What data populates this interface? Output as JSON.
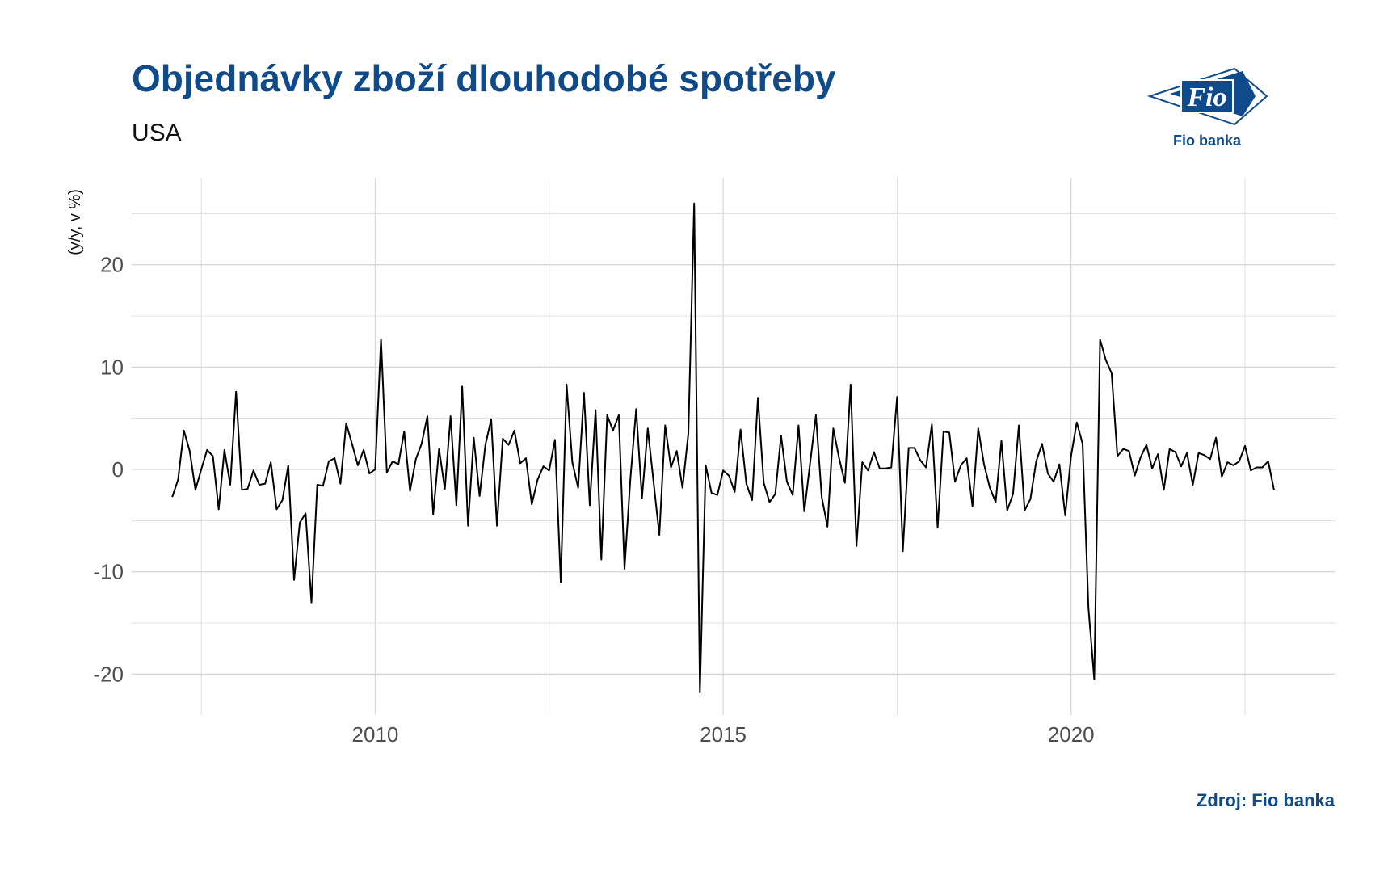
{
  "header": {
    "title": "Objednávky zboží dlouhodobé spotřeby",
    "subtitle": "USA"
  },
  "logo": {
    "mark_text": "Fio",
    "caption": "Fio banka"
  },
  "footer": {
    "source": "Zdroj: Fio banka"
  },
  "colors": {
    "brand": "#0f4a8a",
    "line": "#000000",
    "grid": "#d9d9d9"
  },
  "chart_data": {
    "type": "line",
    "title": "Objednávky zboží dlouhodobé spotřeby",
    "subtitle": "USA",
    "xlabel": "",
    "ylabel": "(y/y, v %)",
    "xlim": [
      2006.5,
      2023.8
    ],
    "ylim": [
      -24,
      28.5
    ],
    "x_ticks": [
      2010,
      2015,
      2020
    ],
    "y_ticks": [
      -20,
      -10,
      0,
      10,
      20
    ],
    "grid": true,
    "legend": "none",
    "x_start": 2007.0833,
    "x_step": 0.08333,
    "values": [
      -2.7,
      -1.0,
      3.8,
      1.8,
      -2.0,
      0.0,
      1.9,
      1.3,
      -3.9,
      1.9,
      -1.5,
      7.6,
      -2.0,
      -1.9,
      -0.1,
      -1.5,
      -1.4,
      0.7,
      -3.9,
      -3.0,
      0.4,
      -10.8,
      -5.2,
      -4.3,
      -13.0,
      -1.5,
      -1.6,
      0.8,
      1.1,
      -1.4,
      4.5,
      2.5,
      0.4,
      1.9,
      -0.4,
      0.0,
      12.7,
      -0.3,
      0.8,
      0.5,
      3.7,
      -2.1,
      1.0,
      2.5,
      5.2,
      -4.4,
      2.0,
      -1.9,
      5.2,
      -3.5,
      8.1,
      -5.5,
      3.1,
      -2.6,
      2.4,
      4.9,
      -5.5,
      3.0,
      2.4,
      3.8,
      0.6,
      1.1,
      -3.4,
      -1.0,
      0.3,
      -0.1,
      2.9,
      -11.0,
      8.3,
      0.7,
      -1.8,
      7.5,
      -3.5,
      5.8,
      -8.8,
      5.3,
      3.8,
      5.3,
      -9.7,
      -1.0,
      5.9,
      -2.8,
      4.0,
      -1.2,
      -6.4,
      4.3,
      0.2,
      1.8,
      -1.8,
      3.5,
      26.0,
      -21.8,
      0.4,
      -2.3,
      -2.5,
      -0.1,
      -0.6,
      -2.2,
      3.9,
      -1.4,
      -3.0,
      7.0,
      -1.3,
      -3.2,
      -2.4,
      3.3,
      -1.2,
      -2.5,
      4.3,
      -4.1,
      0.6,
      5.3,
      -2.7,
      -5.6,
      4.0,
      1.1,
      -1.3,
      8.3,
      -7.5,
      0.7,
      -0.1,
      1.7,
      0.1,
      0.1,
      0.2,
      7.1,
      -8.0,
      2.1,
      2.1,
      0.9,
      0.2,
      4.4,
      -5.7,
      3.7,
      3.6,
      -1.2,
      0.4,
      1.1,
      -3.6,
      4.0,
      0.5,
      -1.8,
      -3.2,
      2.8,
      -4.0,
      -2.4,
      4.3,
      -4.0,
      -2.9,
      0.8,
      2.5,
      -0.4,
      -1.2,
      0.5,
      -4.5,
      1.3,
      4.6,
      2.5,
      -13.5,
      -20.5,
      12.7,
      10.7,
      9.4,
      1.3,
      2.0,
      1.8,
      -0.6,
      1.2,
      2.4,
      0.1,
      1.5,
      -2.0,
      2.0,
      1.7,
      0.3,
      1.6,
      -1.5,
      1.6,
      1.4,
      1.0,
      3.1,
      -0.7,
      0.7,
      0.4,
      0.8,
      2.3,
      -0.1,
      0.2,
      0.2,
      0.8,
      -2.0
    ]
  }
}
